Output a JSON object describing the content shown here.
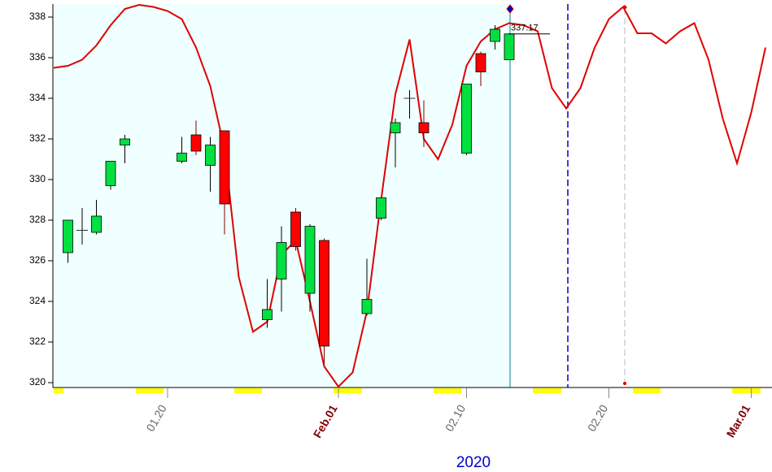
{
  "chart_data": {
    "type": "candlestick",
    "xlabel": "2020",
    "categories": [
      null,
      null,
      null,
      null,
      null,
      null,
      null,
      null,
      "01.20",
      null,
      null,
      null,
      null,
      null,
      null,
      null,
      null,
      null,
      null,
      null,
      "Feb.01",
      null,
      null,
      null,
      null,
      null,
      null,
      null,
      null,
      "02.10",
      null,
      null,
      null,
      null,
      null,
      null,
      null,
      null,
      null,
      "02.20",
      null,
      null,
      null,
      null,
      null,
      null,
      null,
      null,
      null,
      "Mar.01",
      null
    ],
    "open": [
      null,
      326.4,
      327.5,
      327.4,
      329.7,
      331.7,
      null,
      null,
      null,
      330.9,
      332.2,
      330.7,
      332.4,
      null,
      null,
      323.1,
      325.1,
      328.4,
      324.4,
      327.0,
      null,
      null,
      323.4,
      328.1,
      332.3,
      334.0,
      332.8,
      null,
      null,
      331.3,
      336.2,
      336.8,
      335.9,
      null,
      null,
      null,
      null,
      null,
      null,
      null,
      null,
      null,
      null,
      null,
      null,
      null,
      null,
      null,
      null,
      null,
      null
    ],
    "high": [
      null,
      328.0,
      328.6,
      329.0,
      330.9,
      332.2,
      null,
      null,
      null,
      332.1,
      332.9,
      332.1,
      332.4,
      null,
      null,
      325.1,
      327.7,
      328.6,
      327.8,
      327.1,
      null,
      null,
      326.1,
      329.1,
      333.0,
      334.4,
      333.9,
      null,
      null,
      334.7,
      336.3,
      337.6,
      337.2,
      null,
      null,
      null,
      null,
      null,
      null,
      null,
      null,
      null,
      null,
      null,
      null,
      null,
      null,
      null,
      null,
      null,
      null
    ],
    "low": [
      null,
      325.9,
      326.8,
      327.3,
      329.5,
      330.8,
      null,
      null,
      null,
      330.8,
      331.2,
      329.4,
      327.3,
      null,
      null,
      322.7,
      323.5,
      326.5,
      323.5,
      320.9,
      null,
      null,
      323.3,
      328.0,
      330.6,
      333.0,
      331.6,
      null,
      null,
      331.2,
      334.6,
      336.4,
      335.9,
      null,
      null,
      null,
      null,
      null,
      null,
      null,
      null,
      null,
      null,
      null,
      null,
      null,
      null,
      null,
      null,
      null,
      null
    ],
    "close": [
      null,
      328.0,
      327.5,
      328.2,
      330.9,
      332.0,
      null,
      null,
      null,
      331.3,
      331.4,
      331.7,
      328.8,
      null,
      null,
      323.6,
      326.9,
      326.7,
      327.7,
      321.8,
      null,
      null,
      324.1,
      329.1,
      332.8,
      334.0,
      332.3,
      null,
      null,
      334.7,
      335.3,
      337.4,
      337.17,
      null,
      null,
      null,
      null,
      null,
      null,
      null,
      null,
      null,
      null,
      null,
      null,
      null,
      null,
      null,
      null,
      null,
      null
    ],
    "up_color": "#00e040",
    "down_color": "#ff0000",
    "overlay": {
      "type": "line",
      "color": "#e00000",
      "values": [
        335.5,
        335.6,
        335.9,
        336.6,
        337.6,
        338.4,
        338.6,
        338.5,
        338.3,
        337.9,
        336.5,
        334.6,
        331.5,
        325.2,
        322.5,
        323.0,
        326.3,
        327.0,
        324.0,
        320.8,
        319.8,
        320.5,
        323.5,
        329.0,
        334.2,
        336.9,
        332.0,
        331.0,
        332.7,
        335.6,
        336.8,
        337.4,
        337.7,
        337.6,
        337.3,
        334.5,
        333.5,
        334.5,
        336.5,
        337.9,
        338.5,
        337.2,
        337.2,
        336.7,
        337.3,
        337.7,
        335.9,
        333.0,
        330.8,
        333.3,
        336.5
      ]
    },
    "ylim": [
      319.76,
      338.64
    ],
    "yticks": [
      320,
      322,
      324,
      326,
      328,
      330,
      332,
      334,
      336,
      338
    ]
  }
}
